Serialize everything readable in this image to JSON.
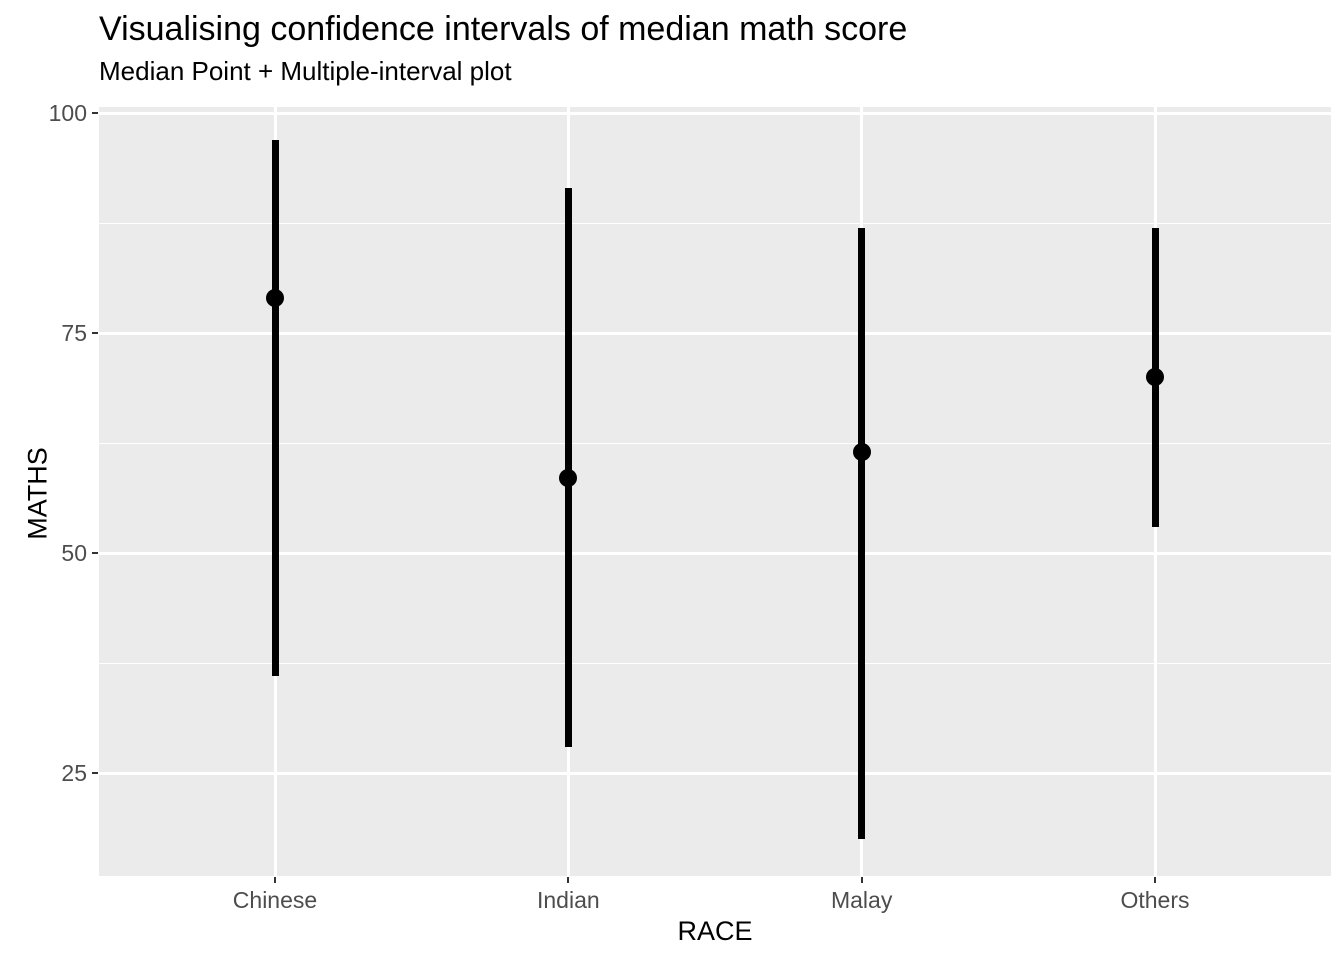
{
  "chart_data": {
    "type": "pointrange",
    "title": "Visualising confidence intervals of median math score",
    "subtitle": "Median Point + Multiple-interval plot",
    "xlabel": "RACE",
    "ylabel": "MATHS",
    "categories": [
      "Chinese",
      "Indian",
      "Malay",
      "Others"
    ],
    "series": [
      {
        "category": "Chinese",
        "median": 79,
        "lower": 36,
        "upper": 97
      },
      {
        "category": "Indian",
        "median": 58.5,
        "lower": 28,
        "upper": 91.5
      },
      {
        "category": "Malay",
        "median": 61.5,
        "lower": 17.5,
        "upper": 87
      },
      {
        "category": "Others",
        "median": 70,
        "lower": 53,
        "upper": 87
      }
    ],
    "y_ticks": [
      100,
      75,
      50,
      25
    ],
    "y_minor_gridlines": [
      87.5,
      62.5,
      37.5
    ],
    "ylim": [
      13.3,
      100.7
    ],
    "grid": true,
    "legend": "none",
    "colors": {
      "panel_background": "#EBEBEB",
      "gridline": "#FFFFFF",
      "tick_label": "#4D4D4D",
      "tick_mark": "#333333",
      "axis_title": "#000000",
      "data": "#000000"
    }
  }
}
